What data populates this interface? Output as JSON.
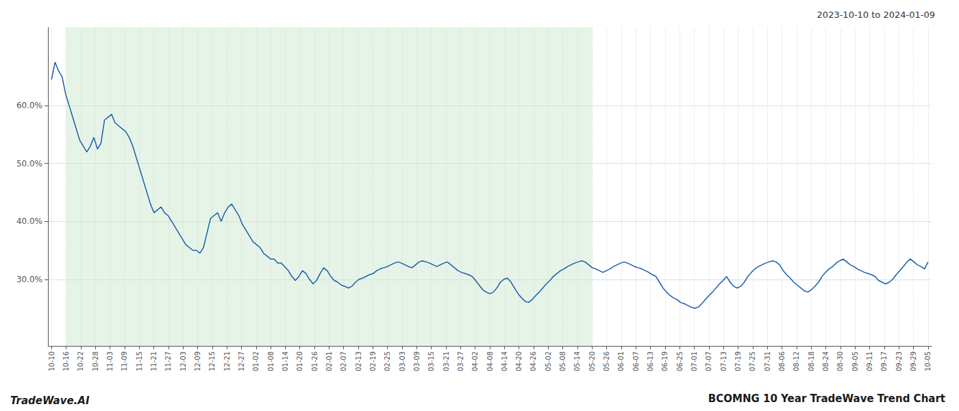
{
  "chart_data": {
    "type": "line",
    "title": "BCOMNG 10 Year TradeWave Trend Chart",
    "subtitle": "2023-10-10 to 2024-01-09",
    "annotations": [
      {
        "text": "TradeWave.AI"
      }
    ],
    "color": "#1a5ea8",
    "grid": true,
    "shade": {
      "x": [
        4.1333333333,
        152.9333333333
      ],
      "color": "#c8e6c9"
    },
    "xlim": [
      -1,
      249
    ],
    "ylim": [
      0.185,
      0.735
    ],
    "yticks": [
      {
        "value": 0.3,
        "label": "30.0%"
      },
      {
        "value": 0.4,
        "label": "40.0%"
      },
      {
        "value": 0.5,
        "label": "50.0%"
      },
      {
        "value": 0.6,
        "label": "60.0%"
      }
    ],
    "xticks": [
      {
        "value": 0,
        "label": "10-10"
      },
      {
        "value": 4.1333333333,
        "label": "10-16"
      },
      {
        "value": 8.2666666667,
        "label": "10-22"
      },
      {
        "value": 12.4,
        "label": "10-28"
      },
      {
        "value": 16.5333333333,
        "label": "11-03"
      },
      {
        "value": 20.6666666667,
        "label": "11-09"
      },
      {
        "value": 24.8,
        "label": "11-15"
      },
      {
        "value": 28.9333333333,
        "label": "11-21"
      },
      {
        "value": 33.0666666667,
        "label": "11-27"
      },
      {
        "value": 37.2,
        "label": "12-03"
      },
      {
        "value": 41.3333333333,
        "label": "12-09"
      },
      {
        "value": 45.4666666667,
        "label": "12-15"
      },
      {
        "value": 49.6,
        "label": "12-21"
      },
      {
        "value": 53.7333333333,
        "label": "12-27"
      },
      {
        "value": 57.8666666667,
        "label": "01-02"
      },
      {
        "value": 62,
        "label": "01-08"
      },
      {
        "value": 66.1333333333,
        "label": "01-14"
      },
      {
        "value": 70.2666666667,
        "label": "01-20"
      },
      {
        "value": 74.4,
        "label": "01-26"
      },
      {
        "value": 78.5333333333,
        "label": "02-01"
      },
      {
        "value": 82.6666666667,
        "label": "02-07"
      },
      {
        "value": 86.8,
        "label": "02-13"
      },
      {
        "value": 90.9333333333,
        "label": "02-19"
      },
      {
        "value": 95.0666666667,
        "label": "02-25"
      },
      {
        "value": 99.2,
        "label": "03-03"
      },
      {
        "value": 103.3333333333,
        "label": "03-09"
      },
      {
        "value": 107.4666666667,
        "label": "03-15"
      },
      {
        "value": 111.6,
        "label": "03-21"
      },
      {
        "value": 115.7333333333,
        "label": "03-27"
      },
      {
        "value": 119.8666666667,
        "label": "04-02"
      },
      {
        "value": 124,
        "label": "04-08"
      },
      {
        "value": 128.1333333333,
        "label": "04-14"
      },
      {
        "value": 132.2666666667,
        "label": "04-20"
      },
      {
        "value": 136.4,
        "label": "04-26"
      },
      {
        "value": 140.5333333333,
        "label": "05-02"
      },
      {
        "value": 144.6666666667,
        "label": "05-08"
      },
      {
        "value": 148.8,
        "label": "05-14"
      },
      {
        "value": 152.9333333333,
        "label": "05-20"
      },
      {
        "value": 157.0666666667,
        "label": "05-26"
      },
      {
        "value": 161.2,
        "label": "06-01"
      },
      {
        "value": 165.3333333333,
        "label": "06-07"
      },
      {
        "value": 169.4666666667,
        "label": "06-13"
      },
      {
        "value": 173.6,
        "label": "06-19"
      },
      {
        "value": 177.7333333333,
        "label": "06-25"
      },
      {
        "value": 181.8666666667,
        "label": "07-01"
      },
      {
        "value": 186,
        "label": "07-07"
      },
      {
        "value": 190.1333333333,
        "label": "07-13"
      },
      {
        "value": 194.2666666667,
        "label": "07-19"
      },
      {
        "value": 198.4,
        "label": "07-25"
      },
      {
        "value": 202.5333333333,
        "label": "07-31"
      },
      {
        "value": 206.6666666667,
        "label": "08-06"
      },
      {
        "value": 210.8,
        "label": "08-12"
      },
      {
        "value": 214.9333333333,
        "label": "08-18"
      },
      {
        "value": 219.0666666667,
        "label": "08-24"
      },
      {
        "value": 223.2,
        "label": "08-30"
      },
      {
        "value": 227.3333333333,
        "label": "09-05"
      },
      {
        "value": 231.4666666667,
        "label": "09-11"
      },
      {
        "value": 235.6,
        "label": "09-17"
      },
      {
        "value": 239.7333333333,
        "label": "09-23"
      },
      {
        "value": 243.8666666667,
        "label": "09-29"
      },
      {
        "value": 248,
        "label": "10-05"
      }
    ],
    "x": [
      0,
      1,
      2,
      3,
      4,
      5,
      6,
      7,
      8,
      9,
      10,
      11,
      12,
      13,
      14,
      15,
      16,
      17,
      18,
      19,
      20,
      21,
      22,
      23,
      24,
      25,
      26,
      27,
      28,
      29,
      30,
      31,
      32,
      33,
      34,
      35,
      36,
      37,
      38,
      39,
      40,
      41,
      42,
      43,
      44,
      45,
      46,
      47,
      48,
      49,
      50,
      51,
      52,
      53,
      54,
      55,
      56,
      57,
      58,
      59,
      60,
      61,
      62,
      63,
      64,
      65,
      66,
      67,
      68,
      69,
      70,
      71,
      72,
      73,
      74,
      75,
      76,
      77,
      78,
      79,
      80,
      81,
      82,
      83,
      84,
      85,
      86,
      87,
      88,
      89,
      90,
      91,
      92,
      93,
      94,
      95,
      96,
      97,
      98,
      99,
      100,
      101,
      102,
      103,
      104,
      105,
      106,
      107,
      108,
      109,
      110,
      111,
      112,
      113,
      114,
      115,
      116,
      117,
      118,
      119,
      120,
      121,
      122,
      123,
      124,
      125,
      126,
      127,
      128,
      129,
      130,
      131,
      132,
      133,
      134,
      135,
      136,
      137,
      138,
      139,
      140,
      141,
      142,
      143,
      144,
      145,
      146,
      147,
      148,
      149,
      150,
      151,
      152,
      153,
      154,
      155,
      156,
      157,
      158,
      159,
      160,
      161,
      162,
      163,
      164,
      165,
      166,
      167,
      168,
      169,
      170,
      171,
      172,
      173,
      174,
      175,
      176,
      177,
      178,
      179,
      180,
      181,
      182,
      183,
      184,
      185,
      186,
      187,
      188,
      189,
      190,
      191,
      192,
      193,
      194,
      195,
      196,
      197,
      198,
      199,
      200,
      201,
      202,
      203,
      204,
      205,
      206,
      207,
      208,
      209,
      210,
      211,
      212,
      213,
      214,
      215,
      216,
      217,
      218,
      219,
      220,
      221,
      222,
      223,
      224,
      225,
      226,
      227,
      228,
      229,
      230,
      231,
      232,
      233,
      234,
      235,
      236,
      237,
      238,
      239,
      240,
      241,
      242,
      243,
      244,
      245,
      246,
      247,
      248
    ],
    "values": [
      0.645,
      0.675,
      0.66,
      0.65,
      0.62,
      0.6,
      0.58,
      0.56,
      0.54,
      0.53,
      0.52,
      0.53,
      0.545,
      0.525,
      0.535,
      0.575,
      0.58,
      0.585,
      0.57,
      0.565,
      0.56,
      0.555,
      0.545,
      0.53,
      0.51,
      0.49,
      0.47,
      0.45,
      0.43,
      0.415,
      0.42,
      0.425,
      0.415,
      0.41,
      0.4,
      0.39,
      0.38,
      0.37,
      0.36,
      0.355,
      0.35,
      0.35,
      0.345,
      0.355,
      0.38,
      0.405,
      0.41,
      0.415,
      0.4,
      0.415,
      0.425,
      0.43,
      0.42,
      0.41,
      0.395,
      0.385,
      0.375,
      0.365,
      0.36,
      0.355,
      0.345,
      0.34,
      0.335,
      0.335,
      0.328,
      0.328,
      0.322,
      0.315,
      0.305,
      0.298,
      0.305,
      0.315,
      0.31,
      0.3,
      0.292,
      0.298,
      0.31,
      0.32,
      0.315,
      0.305,
      0.298,
      0.295,
      0.29,
      0.288,
      0.285,
      0.288,
      0.295,
      0.3,
      0.302,
      0.305,
      0.308,
      0.31,
      0.315,
      0.318,
      0.32,
      0.322,
      0.325,
      0.328,
      0.33,
      0.328,
      0.325,
      0.322,
      0.32,
      0.325,
      0.33,
      0.332,
      0.33,
      0.328,
      0.325,
      0.322,
      0.325,
      0.328,
      0.33,
      0.325,
      0.32,
      0.315,
      0.312,
      0.31,
      0.308,
      0.305,
      0.298,
      0.29,
      0.282,
      0.278,
      0.275,
      0.278,
      0.285,
      0.295,
      0.3,
      0.302,
      0.295,
      0.285,
      0.275,
      0.268,
      0.262,
      0.26,
      0.265,
      0.272,
      0.278,
      0.285,
      0.292,
      0.298,
      0.305,
      0.31,
      0.315,
      0.318,
      0.322,
      0.325,
      0.328,
      0.33,
      0.332,
      0.33,
      0.325,
      0.32,
      0.318,
      0.315,
      0.312,
      0.315,
      0.318,
      0.322,
      0.325,
      0.328,
      0.33,
      0.328,
      0.325,
      0.322,
      0.32,
      0.318,
      0.315,
      0.312,
      0.308,
      0.305,
      0.295,
      0.285,
      0.278,
      0.272,
      0.268,
      0.265,
      0.26,
      0.258,
      0.255,
      0.252,
      0.25,
      0.252,
      0.258,
      0.265,
      0.272,
      0.278,
      0.285,
      0.292,
      0.298,
      0.305,
      0.295,
      0.288,
      0.285,
      0.288,
      0.295,
      0.305,
      0.312,
      0.318,
      0.322,
      0.325,
      0.328,
      0.33,
      0.332,
      0.33,
      0.325,
      0.315,
      0.308,
      0.302,
      0.295,
      0.29,
      0.285,
      0.28,
      0.278,
      0.282,
      0.288,
      0.295,
      0.305,
      0.312,
      0.318,
      0.322,
      0.328,
      0.332,
      0.335,
      0.33,
      0.325,
      0.322,
      0.318,
      0.315,
      0.312,
      0.31,
      0.308,
      0.305,
      0.298,
      0.295,
      0.292,
      0.295,
      0.3,
      0.308,
      0.315,
      0.322,
      0.33,
      0.335,
      0.33,
      0.325,
      0.322,
      0.318,
      0.33
    ]
  }
}
